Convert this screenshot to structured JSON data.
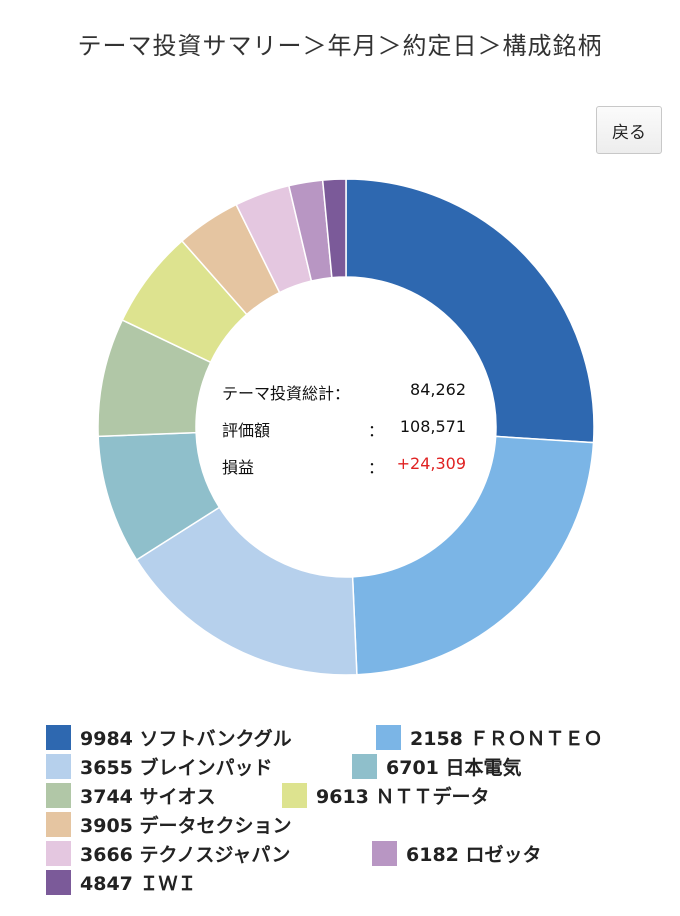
{
  "page": {
    "title": "テーマ投資サマリー＞年月＞約定日＞構成銘柄",
    "back_label": "戻る"
  },
  "summary": {
    "total_label": "テーマ投資総計：",
    "total_value": "84,262",
    "eval_label": "評価額",
    "eval_colon": "：",
    "eval_value": "108,571",
    "pl_label": "損益",
    "pl_colon": "：",
    "pl_value": "+24,309",
    "pl_color": "#e02222"
  },
  "chart_data": {
    "type": "pie",
    "donut": true,
    "categories": [
      "9984 ソフトバンクグル",
      "2158 ＦＲＯＮＴＥＯ",
      "3655 ブレインパッド",
      "6701 日本電気",
      "3744 サイオス",
      "9613 ＮＴＴデータ",
      "3905 データセクション",
      "3666 テクノスジャパン",
      "6182 ロゼッタ",
      "4847 ＩＷＩ"
    ],
    "values": [
      26.0,
      23.3,
      16.7,
      8.4,
      7.7,
      6.4,
      4.2,
      3.6,
      2.2,
      1.5
    ],
    "colors": [
      "#2e68b0",
      "#7bb5e6",
      "#b6d0ec",
      "#8fbfcb",
      "#b1c7a7",
      "#dde38f",
      "#e5c5a1",
      "#e4c7e0",
      "#b896c3",
      "#7b5a99"
    ],
    "legend_position": "bottom"
  }
}
